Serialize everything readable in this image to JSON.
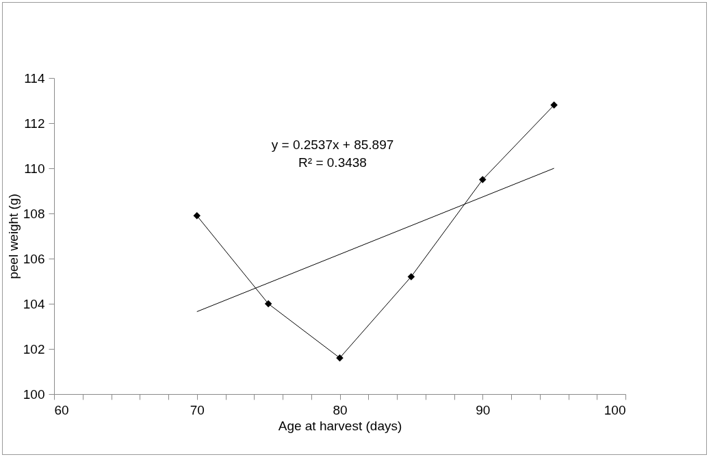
{
  "chart_data": {
    "type": "line",
    "xlabel": "Age at harvest (days)",
    "ylabel": "peel weight (g)",
    "xlim": [
      60,
      100
    ],
    "ylim": [
      100,
      114
    ],
    "xticks": [
      60,
      {
        "value": 62,
        "label": null
      },
      {
        "value": 64,
        "label": null
      },
      {
        "value": 66,
        "label": null
      },
      {
        "value": 68,
        "label": null
      },
      70,
      {
        "value": 72,
        "label": null
      },
      {
        "value": 74,
        "label": null
      },
      {
        "value": 76,
        "label": null
      },
      {
        "value": 78,
        "label": null
      },
      80,
      {
        "value": 82,
        "label": null
      },
      {
        "value": 84,
        "label": null
      },
      {
        "value": 86,
        "label": null
      },
      {
        "value": 88,
        "label": null
      },
      90,
      {
        "value": 92,
        "label": null
      },
      {
        "value": 94,
        "label": null
      },
      {
        "value": 96,
        "label": null
      },
      {
        "value": 98,
        "label": null
      },
      100
    ],
    "yticks": [
      100,
      102,
      104,
      106,
      108,
      110,
      112,
      114
    ],
    "grid": false,
    "marker": "diamond",
    "line_style": "solid",
    "series": [
      {
        "color": "#000000",
        "x": [
          70,
          75,
          80,
          85,
          90,
          95
        ],
        "values": [
          107.9,
          104.0,
          101.6,
          105.2,
          109.5,
          112.8
        ]
      },
      {
        "type": "line",
        "color": "#000000",
        "marker": "none",
        "x": [
          70,
          95
        ],
        "values": [
          103.65,
          110.0
        ]
      }
    ],
    "annotations": [
      "y = 0.2537x + 85.897",
      "R² = 0.3438"
    ]
  }
}
